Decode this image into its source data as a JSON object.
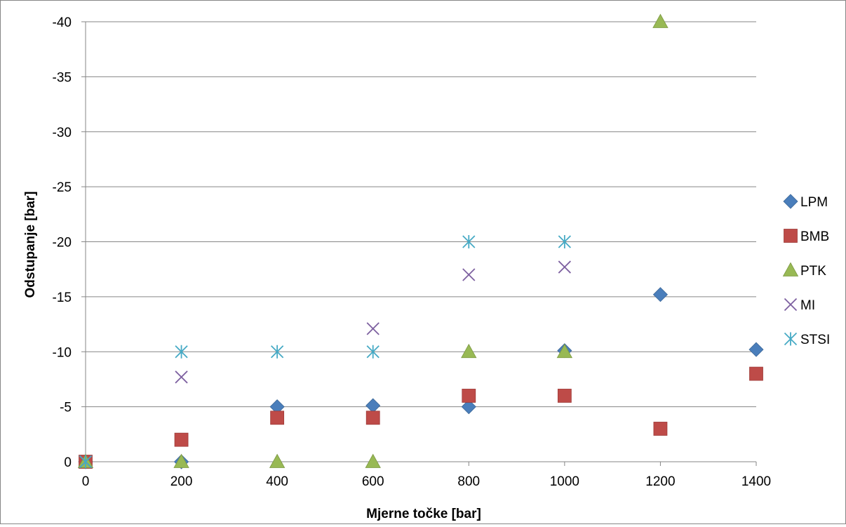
{
  "chart_data": {
    "type": "scatter",
    "xlabel": "Mjerne točke  [bar]",
    "ylabel": "Odstupanje [bar]",
    "xlim": [
      0,
      1400
    ],
    "ylim": [
      0,
      -40
    ],
    "y_axis_reversed": true,
    "x_ticks": [
      0,
      200,
      400,
      600,
      800,
      1000,
      1200,
      1400
    ],
    "y_ticks": [
      0,
      -5,
      -10,
      -15,
      -20,
      -25,
      -30,
      -35,
      -40
    ],
    "x_tick_labels": [
      "0",
      "200",
      "400",
      "600",
      "800",
      "1000",
      "1200",
      "1400"
    ],
    "y_tick_labels": [
      "0",
      "-5",
      "-10",
      "-15",
      "-20",
      "-25",
      "-30",
      "-35",
      "-40"
    ],
    "grid": "horizontal",
    "legend_position": "right",
    "series": [
      {
        "name": "LPM",
        "marker": "diamond",
        "color": "#4A7EBB",
        "points": [
          [
            0,
            0
          ],
          [
            200,
            0
          ],
          [
            400,
            -5
          ],
          [
            600,
            -5.1
          ],
          [
            800,
            -5
          ],
          [
            1000,
            -10.1
          ],
          [
            1200,
            -15.2
          ],
          [
            1400,
            -10.2
          ]
        ]
      },
      {
        "name": "BMB",
        "marker": "square",
        "color": "#BE4B48",
        "points": [
          [
            0,
            0
          ],
          [
            200,
            -2
          ],
          [
            400,
            -4
          ],
          [
            600,
            -4
          ],
          [
            800,
            -6
          ],
          [
            1000,
            -6
          ],
          [
            1200,
            -3
          ],
          [
            1400,
            -8
          ]
        ]
      },
      {
        "name": "PTK",
        "marker": "triangle",
        "color": "#98B954",
        "points": [
          [
            0,
            0
          ],
          [
            200,
            0
          ],
          [
            400,
            0
          ],
          [
            600,
            0
          ],
          [
            800,
            -10
          ],
          [
            1000,
            -10
          ],
          [
            1200,
            -40
          ]
        ]
      },
      {
        "name": "MI",
        "marker": "x",
        "color": "#7D60A0",
        "points": [
          [
            0,
            0
          ],
          [
            200,
            -7.7
          ],
          [
            600,
            -12.1
          ],
          [
            800,
            -17
          ],
          [
            1000,
            -17.7
          ]
        ]
      },
      {
        "name": "STSI",
        "marker": "star",
        "color": "#46AAC5",
        "points": [
          [
            0,
            0
          ],
          [
            200,
            -10
          ],
          [
            400,
            -10
          ],
          [
            600,
            -10
          ],
          [
            800,
            -20
          ],
          [
            1000,
            -20
          ]
        ]
      }
    ]
  }
}
